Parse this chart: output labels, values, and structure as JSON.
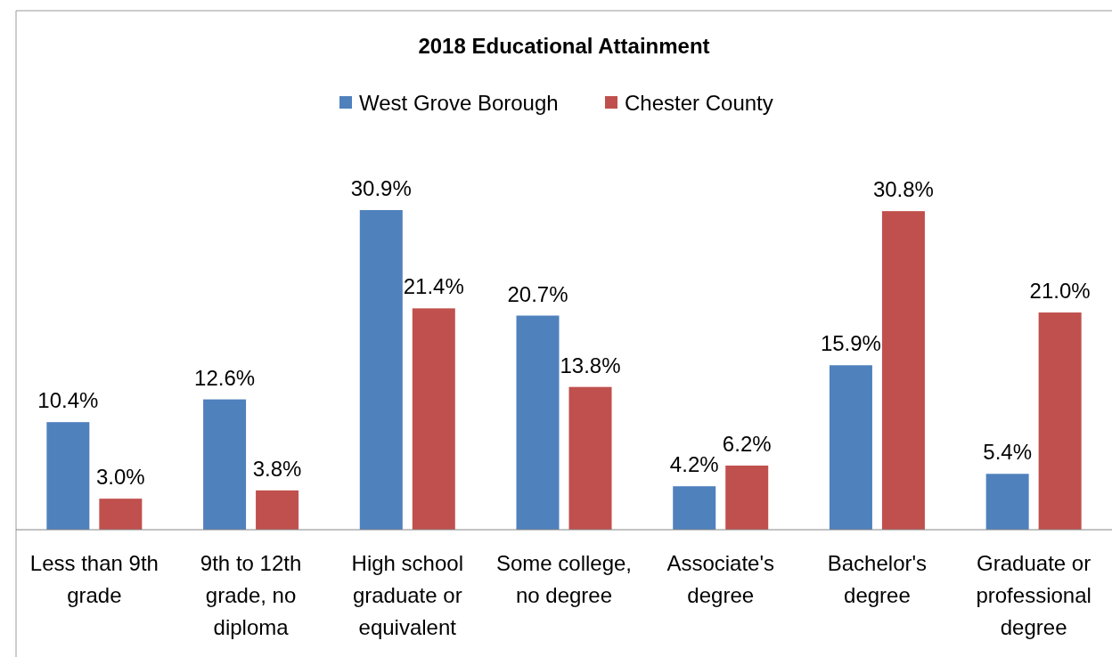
{
  "chart_data": {
    "type": "bar",
    "title": "2018 Educational Attainment",
    "categories": [
      "Less than 9th grade",
      "9th to 12th grade, no diploma",
      "High school graduate or equivalent",
      "Some college, no degree",
      "Associate's degree",
      "Bachelor's degree",
      "Graduate or professional degree"
    ],
    "series": [
      {
        "name": "West Grove Borough",
        "color": "#4f81bd",
        "values": [
          10.4,
          12.6,
          30.9,
          20.7,
          4.2,
          15.9,
          5.4
        ],
        "value_labels": [
          "10.4%",
          "12.6%",
          "30.9%",
          "20.7%",
          "4.2%",
          "15.9%",
          "5.4%"
        ]
      },
      {
        "name": "Chester County",
        "color": "#c0504d",
        "values": [
          3.0,
          3.8,
          21.4,
          13.8,
          6.2,
          30.8,
          21.0
        ],
        "value_labels": [
          "3.0%",
          "3.8%",
          "21.4%",
          "13.8%",
          "6.2%",
          "30.8%",
          "21.0%"
        ]
      }
    ],
    "legend": "top"
  }
}
